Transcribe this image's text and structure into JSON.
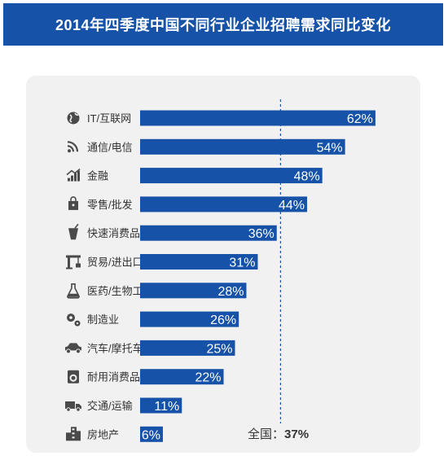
{
  "header": {
    "title": "2014年四季度中国不同行业企业招聘需求同比变化"
  },
  "colors": {
    "title_background": "#1552a8",
    "bar": "#1552a8",
    "panel": "#f1f1f1",
    "reference_line": "#1552a8"
  },
  "chart_data": {
    "type": "bar",
    "orientation": "horizontal",
    "categories": [
      "IT/互联网",
      "通信/电信",
      "金融",
      "零售/批发",
      "快速消费品",
      "贸易/进出口",
      "医药/生物工程",
      "制造业",
      "汽车/摩托车",
      "耐用消费品",
      "交通/运输",
      "房地产"
    ],
    "values": [
      62,
      54,
      48,
      44,
      36,
      31,
      28,
      26,
      25,
      22,
      11,
      6
    ],
    "value_labels": [
      "62%",
      "54%",
      "48%",
      "44%",
      "36%",
      "31%",
      "28%",
      "26%",
      "25%",
      "22%",
      "11%",
      "6%"
    ],
    "icons": [
      "globe-icon",
      "rss-icon",
      "chart-up-icon",
      "shopping-bag-icon",
      "drink-cup-icon",
      "crane-icon",
      "flask-icon",
      "gears-icon",
      "car-icon",
      "washing-machine-icon",
      "truck-icon",
      "buildings-icon"
    ],
    "unit": "%",
    "xlim": [
      0,
      62
    ],
    "reference": {
      "label": "全国：",
      "value": 37,
      "value_label": "37%",
      "line_style": "dashed"
    },
    "grid": false,
    "legend": "none"
  }
}
